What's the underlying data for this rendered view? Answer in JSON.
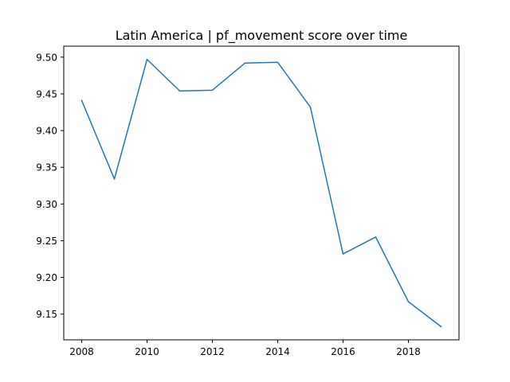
{
  "chart_data": {
    "type": "line",
    "title": "Latin America | pf_movement score over time",
    "xlabel": "",
    "ylabel": "",
    "x": [
      2008,
      2009,
      2010,
      2011,
      2012,
      2013,
      2014,
      2015,
      2016,
      2017,
      2018,
      2019
    ],
    "series": [
      {
        "values": [
          9.441,
          9.334,
          9.497,
          9.454,
          9.455,
          9.492,
          9.493,
          9.432,
          9.232,
          9.255,
          9.167,
          9.133
        ],
        "color": "#1f77b4"
      }
    ],
    "xlim": [
      2007.45,
      2019.55
    ],
    "ylim": [
      9.115,
      9.515
    ],
    "xticks": [
      2008,
      2010,
      2012,
      2014,
      2016,
      2018
    ],
    "yticks": [
      9.15,
      9.2,
      9.25,
      9.3,
      9.35,
      9.4,
      9.45,
      9.5
    ],
    "ytick_labels": [
      "9.15",
      "9.20",
      "9.25",
      "9.30",
      "9.35",
      "9.40",
      "9.45",
      "9.50"
    ],
    "grid": false,
    "legend": "none"
  }
}
